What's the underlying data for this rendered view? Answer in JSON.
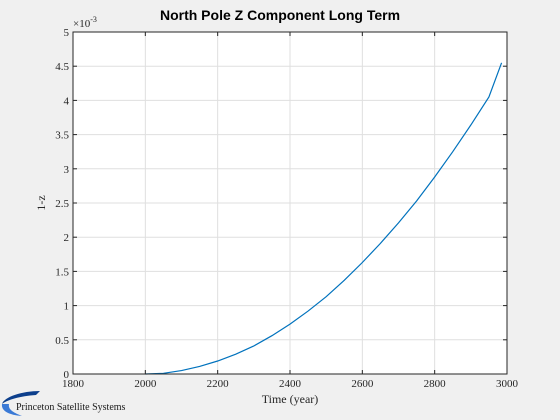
{
  "chart_data": {
    "type": "line",
    "title": "North Pole Z Component Long Term",
    "xlabel": "Time (year)",
    "ylabel": "1-z",
    "xlim": [
      1800,
      3000
    ],
    "ylim": [
      0,
      5
    ],
    "y_multiplier_label": "×10",
    "y_multiplier_exp": "-3",
    "xticks": [
      1800,
      2000,
      2200,
      2400,
      2600,
      2800,
      3000
    ],
    "yticks": [
      0,
      0.5,
      1,
      1.5,
      2,
      2.5,
      3,
      3.5,
      4,
      4.5,
      5
    ],
    "grid": true,
    "series": [
      {
        "color": "#0072bd",
        "x": [
          2000,
          2050,
          2100,
          2150,
          2200,
          2250,
          2300,
          2350,
          2400,
          2450,
          2500,
          2550,
          2600,
          2650,
          2700,
          2750,
          2800,
          2850,
          2900,
          2950,
          2985
        ],
        "y": [
          0,
          0.01,
          0.05,
          0.11,
          0.19,
          0.29,
          0.41,
          0.56,
          0.73,
          0.92,
          1.13,
          1.37,
          1.63,
          1.91,
          2.21,
          2.53,
          2.88,
          3.25,
          3.64,
          4.05,
          4.55
        ]
      }
    ]
  },
  "logo": {
    "text": "Princeton Satellite Systems",
    "colors": [
      "#0d3f8c",
      "#3b7ad6"
    ]
  }
}
